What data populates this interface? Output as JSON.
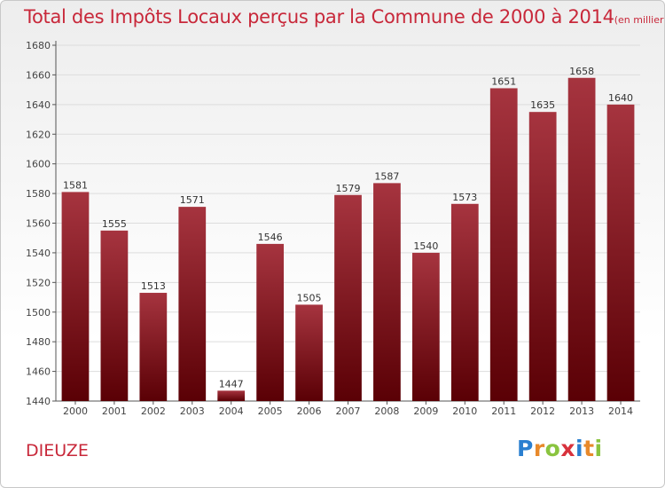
{
  "title": "Total des Impôts Locaux perçus par la Commune de 2000 à 2014",
  "title_unit": "(en milliers d'€)",
  "commune": "DIEUZE",
  "brand": {
    "letters": [
      "P",
      "r",
      "o",
      "x",
      "i",
      "t",
      "i"
    ],
    "colors": [
      "#2a7fd0",
      "#e8892a",
      "#8ac43f",
      "#d8323c",
      "#2a7fd0",
      "#e8892a",
      "#8ac43f"
    ]
  },
  "colors": {
    "bar_top": "#a6343f",
    "bar_bottom": "#5a0005",
    "title": "#c8283a",
    "grid": "#dddddd"
  },
  "chart_data": {
    "type": "bar",
    "categories": [
      "2000",
      "2001",
      "2002",
      "2003",
      "2004",
      "2005",
      "2006",
      "2007",
      "2008",
      "2009",
      "2010",
      "2011",
      "2012",
      "2013",
      "2014"
    ],
    "values": [
      1581,
      1555,
      1513,
      1571,
      1447,
      1546,
      1505,
      1579,
      1587,
      1540,
      1573,
      1651,
      1635,
      1658,
      1640
    ],
    "ylim": [
      1440,
      1680
    ],
    "yticks": [
      1440,
      1460,
      1480,
      1500,
      1520,
      1540,
      1560,
      1580,
      1600,
      1620,
      1640,
      1660,
      1680
    ],
    "grid": true
  }
}
